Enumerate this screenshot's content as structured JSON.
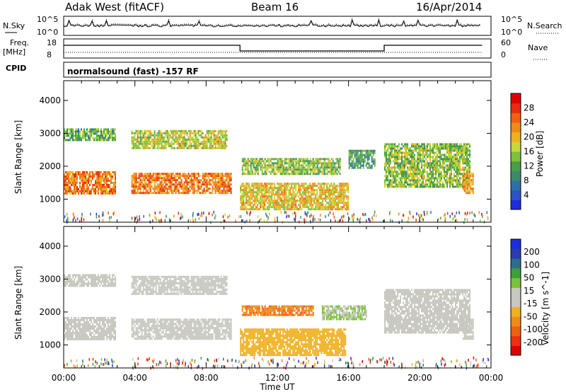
{
  "header": {
    "station": "Adak West (fitACF)",
    "beam": "Beam 16",
    "date": "16/Apr/2014"
  },
  "noise_panel": {
    "left_label": "N.Sky",
    "right_label": "N.Search",
    "ticks": [
      "10^5",
      "10^0"
    ]
  },
  "freq_panel": {
    "left_label_1": "Freq.",
    "left_label_2": "[MHz]",
    "left_ticks": [
      "18",
      "8"
    ],
    "right_label": "Nave",
    "right_ticks": [
      "60",
      "0"
    ]
  },
  "cpid": {
    "label": "CPID",
    "text": "normalsound (fast) -157 RF"
  },
  "chart_data": [
    {
      "type": "heatmap",
      "title": "",
      "ylabel": "Slant Range [km]",
      "xlabel": "",
      "x_range_hours": [
        0,
        24
      ],
      "y_range_km": [
        300,
        4600
      ],
      "y_ticks": [
        "4000",
        "3000",
        "2000",
        "1000"
      ],
      "colorbar": {
        "label": "Power [dB]",
        "ticks": [
          "28",
          "24",
          "20",
          "16",
          "12",
          "8",
          "4"
        ],
        "range": [
          0,
          30
        ],
        "colors": [
          "#1f2de0",
          "#2c52c8",
          "#2f6fa8",
          "#3c8a6e",
          "#4a9e4a",
          "#7cc23a",
          "#c8d83a",
          "#f0b020",
          "#f08a18",
          "#f06010",
          "#e82c10",
          "#e00000"
        ]
      },
      "bands": [
        {
          "name": "",
          "t0": 0.0,
          "t1": 2.9,
          "range": [
            1150,
            1850
          ],
          "value": 22
        },
        {
          "name": "",
          "t0": 0.0,
          "t1": 2.9,
          "range": [
            2800,
            3150
          ],
          "value": 12
        },
        {
          "name": "",
          "t0": 3.8,
          "t1": 9.4,
          "range": [
            1200,
            1800
          ],
          "value": 22
        },
        {
          "name": "",
          "t0": 3.8,
          "t1": 9.2,
          "range": [
            2550,
            3100
          ],
          "value": 16
        },
        {
          "name": "",
          "t0": 9.9,
          "t1": 16.0,
          "range": [
            700,
            1500
          ],
          "value": 18
        },
        {
          "name": "",
          "t0": 10.0,
          "t1": 15.5,
          "range": [
            1750,
            2250
          ],
          "value": 14
        },
        {
          "name": "",
          "t0": 16.0,
          "t1": 17.5,
          "range": [
            1950,
            2500
          ],
          "value": 10
        },
        {
          "name": "",
          "t0": 18.0,
          "t1": 22.8,
          "range": [
            1400,
            2700
          ],
          "value": 14
        },
        {
          "name": "",
          "t0": 22.4,
          "t1": 23.0,
          "range": [
            1200,
            1800
          ],
          "value": 20
        }
      ]
    },
    {
      "type": "heatmap",
      "title": "",
      "ylabel": "Slant Range [km]",
      "xlabel": "Time UT",
      "x_range_hours": [
        0,
        24
      ],
      "x_ticks": [
        "00:00",
        "04:00",
        "08:00",
        "12:00",
        "16:00",
        "20:00",
        "00:00"
      ],
      "y_range_km": [
        300,
        4600
      ],
      "y_ticks": [
        "4000",
        "3000",
        "2000",
        "1000"
      ],
      "colorbar": {
        "label": "Velocity [m s^-1]",
        "ticks": [
          "200",
          "100",
          "50",
          "15",
          "-15",
          "-50",
          "-100",
          "-200"
        ],
        "range": [
          -250,
          250
        ],
        "colors": [
          "#e00000",
          "#f03010",
          "#f06010",
          "#f08a18",
          "#f0b020",
          "#c8c8c0",
          "#c8c8c0",
          "#7cc23a",
          "#3ca03c",
          "#2c6e8a",
          "#2c3cb0",
          "#1f2de0"
        ]
      },
      "bands": [
        {
          "name": "",
          "t0": 0.0,
          "t1": 2.9,
          "range": [
            1150,
            1850
          ],
          "value": 0
        },
        {
          "name": "",
          "t0": 0.0,
          "t1": 2.9,
          "range": [
            2800,
            3150
          ],
          "value": 0
        },
        {
          "name": "",
          "t0": 3.8,
          "t1": 9.4,
          "range": [
            1200,
            1800
          ],
          "value": 0
        },
        {
          "name": "",
          "t0": 3.8,
          "t1": 9.2,
          "range": [
            2550,
            3100
          ],
          "value": 0
        },
        {
          "name": "",
          "t0": 9.9,
          "t1": 15.8,
          "range": [
            700,
            1500
          ],
          "value": -60
        },
        {
          "name": "",
          "t0": 10.0,
          "t1": 14.0,
          "range": [
            1900,
            2200
          ],
          "value": -120
        },
        {
          "name": "",
          "t0": 14.5,
          "t1": 17.0,
          "range": [
            1800,
            2200
          ],
          "value": 40
        },
        {
          "name": "",
          "t0": 18.0,
          "t1": 22.8,
          "range": [
            1400,
            2700
          ],
          "value": 0
        },
        {
          "name": "",
          "t0": 22.4,
          "t1": 23.0,
          "range": [
            1200,
            1800
          ],
          "value": 0
        }
      ]
    }
  ]
}
